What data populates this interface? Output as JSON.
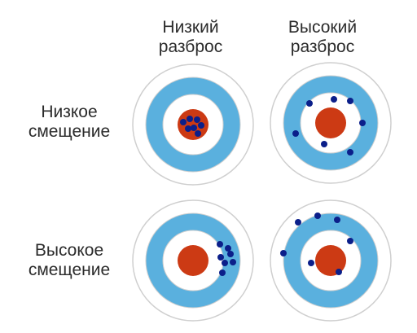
{
  "columns": [
    {
      "line1": "Низкий",
      "line2": "разброс"
    },
    {
      "line1": "Высокий",
      "line2": "разброс"
    }
  ],
  "rows": [
    {
      "line1": "Низкое",
      "line2": "смещение"
    },
    {
      "line1": "Высокое",
      "line2": "смещение"
    }
  ],
  "colors": {
    "outer_ring": "#ffffff",
    "ring_stroke": "#cfcfcf",
    "blue_ring": "#5ab0de",
    "center": "#cc3a14",
    "dots": "#0b1f8a"
  },
  "targets": [
    {
      "name": "target-low-bias-low-variance"
    },
    {
      "name": "target-low-bias-high-variance"
    },
    {
      "name": "target-high-bias-low-variance"
    },
    {
      "name": "target-high-bias-high-variance"
    }
  ]
}
